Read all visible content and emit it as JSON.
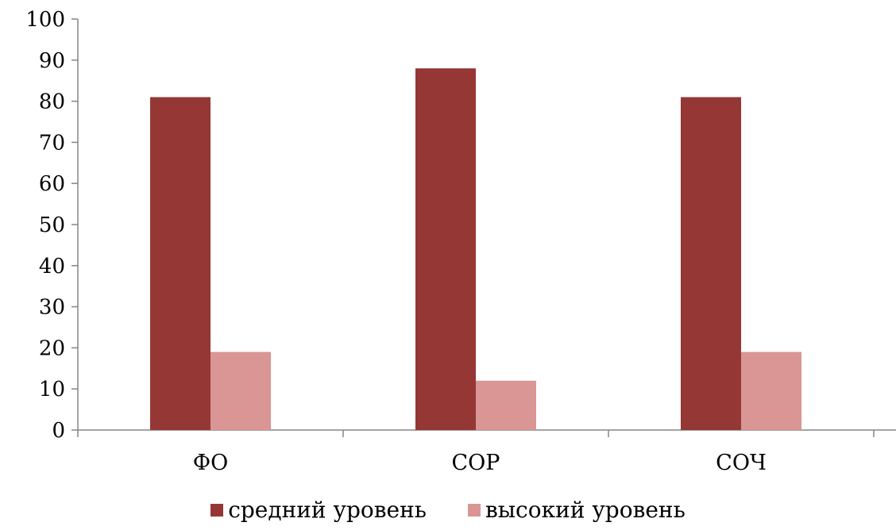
{
  "chart_data": {
    "type": "bar",
    "categories": [
      "ФО",
      "СОР",
      "СОЧ"
    ],
    "series": [
      {
        "name": "средний уровень",
        "values": [
          81,
          88,
          81
        ],
        "color": "#953735"
      },
      {
        "name": "высокий уровень",
        "values": [
          19,
          12,
          19
        ],
        "color": "#D99694"
      }
    ],
    "title": "",
    "xlabel": "",
    "ylabel": "",
    "ylim": [
      0,
      100
    ],
    "yticks": [
      "0",
      "10",
      "20",
      "30",
      "40",
      "50",
      "60",
      "70",
      "80",
      "90",
      "100"
    ],
    "grid": false,
    "legend_position": "bottom"
  }
}
